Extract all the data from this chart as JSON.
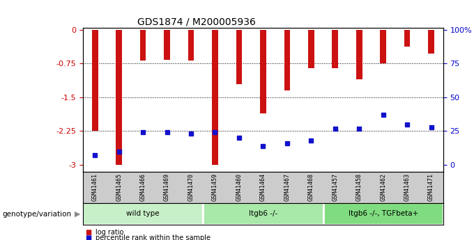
{
  "title": "GDS1874 / M200005936",
  "samples": [
    "GSM41461",
    "GSM41465",
    "GSM41466",
    "GSM41469",
    "GSM41470",
    "GSM41459",
    "GSM41460",
    "GSM41464",
    "GSM41467",
    "GSM41468",
    "GSM41457",
    "GSM41458",
    "GSM41462",
    "GSM41463",
    "GSM41471"
  ],
  "log_ratio": [
    -2.25,
    -3.0,
    -0.68,
    -0.66,
    -0.68,
    -3.0,
    -1.2,
    -1.85,
    -1.35,
    -0.85,
    -0.85,
    -1.1,
    -0.75,
    -0.38,
    -0.52
  ],
  "percentile_rank": [
    7,
    10,
    24,
    24,
    23,
    24,
    20,
    14,
    16,
    18,
    27,
    27,
    37,
    30,
    28
  ],
  "groups": [
    {
      "label": "wild type",
      "indices": [
        0,
        1,
        2,
        3,
        4
      ],
      "color": "#c8f0c8"
    },
    {
      "label": "Itgb6 -/-",
      "indices": [
        5,
        6,
        7,
        8,
        9
      ],
      "color": "#a8e8a8"
    },
    {
      "label": "Itgb6 -/-, TGFbeta+",
      "indices": [
        10,
        11,
        12,
        13,
        14
      ],
      "color": "#80dc80"
    }
  ],
  "ylim_left": [
    -3.15,
    0.05
  ],
  "ylim_right": [
    -3.15,
    0.05
  ],
  "yticks_left": [
    0,
    -0.75,
    -1.5,
    -2.25,
    -3.0
  ],
  "ytick_labels_left": [
    "0",
    "-0.75",
    "-1.5",
    "-2.25",
    "-3"
  ],
  "yticks_right_vals": [
    0,
    -0.75,
    -1.5,
    -2.25,
    -3.0
  ],
  "ytick_labels_right": [
    "100%",
    "75",
    "50",
    "25",
    "0"
  ],
  "bar_color": "#cc1111",
  "dot_color": "#1111cc",
  "group_label_prefix": "genotype/variation",
  "legend_items": [
    {
      "label": "log ratio",
      "color": "#cc1111"
    },
    {
      "label": "percentile rank within the sample",
      "color": "#1111cc"
    }
  ],
  "grid_dotted_values": [
    -0.75,
    -1.5,
    -2.25
  ],
  "background_color": "#ffffff",
  "plot_bg_color": "#ffffff",
  "tick_area_color": "#cccccc",
  "bar_width": 0.25
}
